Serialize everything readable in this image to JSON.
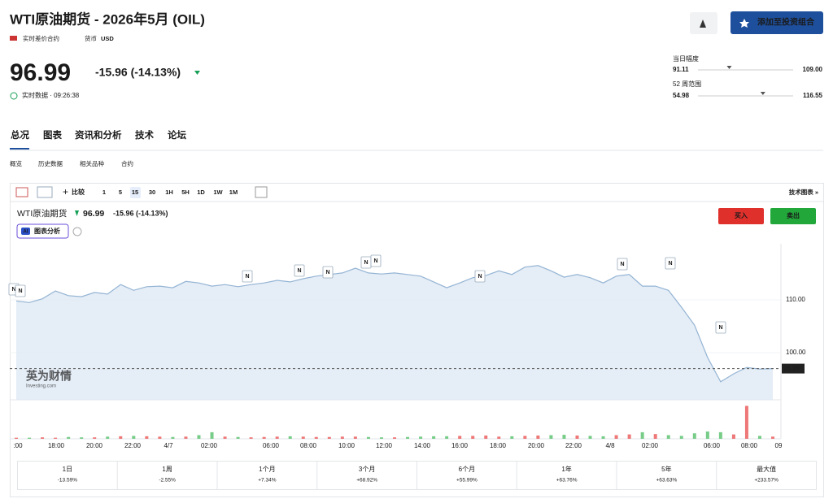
{
  "header": {
    "title": "WTI原油期货 - 2026年5月 (OIL)",
    "contract_type": "实时差价合约",
    "currency_label": "货币",
    "currency": "USD",
    "price": "96.99",
    "change": "-15.96 (-14.13%)",
    "realtime": "实时数据 · 09:26:38",
    "add_portfolio": "添加至投资组合"
  },
  "ranges": {
    "day_label": "当日幅度",
    "day_low": "91.11",
    "day_high": "109.00",
    "week52_label": "52 周范围",
    "week52_low": "54.98",
    "week52_high": "116.55"
  },
  "tabs": [
    "总况",
    "图表",
    "资讯和分析",
    "技术",
    "论坛"
  ],
  "subtabs": [
    "概览",
    "历史数据",
    "相关品种",
    "合约"
  ],
  "toolbar": {
    "compare": "比较",
    "intervals": [
      "1",
      "5",
      "15",
      "30",
      "1H",
      "5H",
      "1D",
      "1W",
      "1M"
    ],
    "active_interval": 2,
    "tech_chart": "技术图表 »"
  },
  "chart": {
    "type": "area",
    "title": "WTI原油期货",
    "price": "96.99",
    "change": "-15.96 (-14.13%)",
    "ai_badge": "AI",
    "ai": "图表分析",
    "buy": "买入",
    "sell": "卖出",
    "values": [
      109.8,
      109.5,
      110.2,
      111.7,
      110.8,
      110.6,
      111.4,
      111.1,
      112.9,
      111.8,
      112.5,
      112.6,
      112.3,
      113.5,
      113.2,
      112.6,
      112.9,
      112.5,
      112.9,
      113.2,
      113.7,
      113.4,
      114.0,
      114.5,
      114.8,
      115.1,
      116.0,
      115.1,
      114.9,
      115.1,
      114.8,
      114.5,
      113.4,
      112.3,
      113.2,
      114.2,
      114.6,
      115.5,
      114.8,
      116.2,
      116.5,
      115.5,
      114.3,
      114.8,
      114.2,
      113.2,
      114.5,
      114.8,
      112.6,
      112.6,
      111.8,
      108.6,
      105.2,
      99.1,
      94.5,
      96.0,
      97.2,
      96.9,
      96.99
    ],
    "volume": [
      0.3,
      0.3,
      0.4,
      0.3,
      0.5,
      0.4,
      0.4,
      0.6,
      0.7,
      0.8,
      0.7,
      0.6,
      0.5,
      0.6,
      1.0,
      1.8,
      0.6,
      0.5,
      0.4,
      0.5,
      0.6,
      0.7,
      0.6,
      0.5,
      0.5,
      0.6,
      0.6,
      0.5,
      0.4,
      0.4,
      0.5,
      0.6,
      0.7,
      0.7,
      0.8,
      0.8,
      0.9,
      0.6,
      0.7,
      0.8,
      0.9,
      1.0,
      1.1,
      0.9,
      0.8,
      0.7,
      1.0,
      1.2,
      1.8,
      1.3,
      1.0,
      0.8,
      1.5,
      2.0,
      1.8,
      1.2,
      9.0,
      0.8,
      0.6
    ],
    "ylim": [
      91.08,
      120.62
    ],
    "yticks": [
      {
        "value": 100,
        "label": "100.00"
      },
      {
        "value": 110,
        "label": "110.00"
      }
    ],
    "x_labels": [
      ":00",
      "18:00",
      "20:00",
      "22:00",
      "4/7",
      "02:00",
      "06:00",
      "08:00",
      "10:00",
      "12:00",
      "14:00",
      "16:00",
      "18:00",
      "20:00",
      "22:00",
      "4/8",
      "02:00",
      "06:00",
      "08:00",
      "09"
    ],
    "news_markers": [
      "N",
      "N",
      "N",
      "N",
      "N",
      "N",
      "N",
      "N",
      "N",
      "N",
      "N"
    ],
    "watermark": "英为财情",
    "watermark_sub": "Investing.com"
  },
  "performance": [
    {
      "period": "1日",
      "change": "-13.59%"
    },
    {
      "period": "1周",
      "change": "-2.55%"
    },
    {
      "period": "1个月",
      "change": "+7.34%"
    },
    {
      "period": "3个月",
      "change": "+68.92%"
    },
    {
      "period": "6个月",
      "change": "+55.99%"
    },
    {
      "period": "1年",
      "change": "+63.76%"
    },
    {
      "period": "5年",
      "change": "+63.63%"
    },
    {
      "period": "最大值",
      "change": "+233.57%"
    }
  ]
}
